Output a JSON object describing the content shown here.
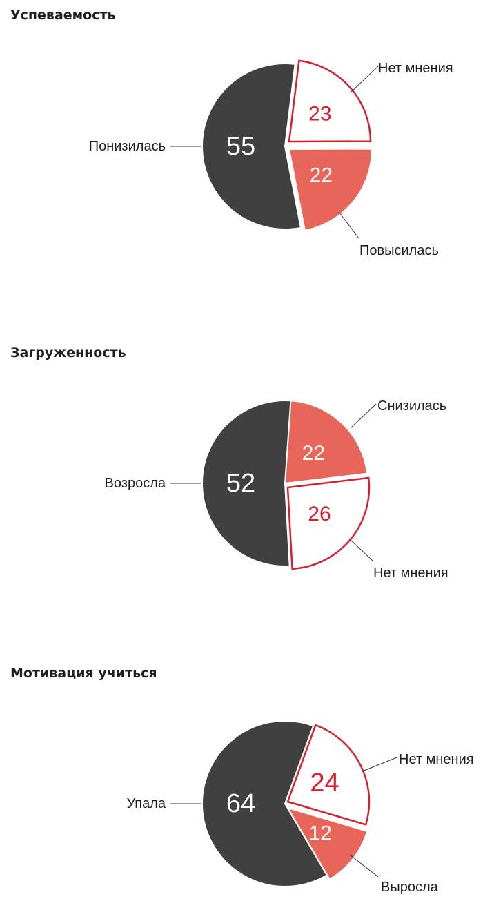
{
  "colors": {
    "dark": "#404040",
    "red": "#e8655a",
    "outline": "#d6202f",
    "white": "#ffffff",
    "leader": "#333333",
    "text": "#1f1f1f"
  },
  "chart_data": [
    {
      "type": "pie",
      "title": "Успеваемость",
      "slices": [
        {
          "label": "Нет мнения",
          "value": 23,
          "style": "outline"
        },
        {
          "label": "Повысилась",
          "value": 22,
          "style": "red"
        },
        {
          "label": "Понизилась",
          "value": 55,
          "style": "dark"
        }
      ]
    },
    {
      "type": "pie",
      "title": "Загруженность",
      "slices": [
        {
          "label": "Снизилась",
          "value": 22,
          "style": "red"
        },
        {
          "label": "Нет мнения",
          "value": 26,
          "style": "outline"
        },
        {
          "label": "Возросла",
          "value": 52,
          "style": "dark"
        }
      ]
    },
    {
      "type": "pie",
      "title": "Мотивация учиться",
      "slices": [
        {
          "label": "Нет мнения",
          "value": 24,
          "style": "outline"
        },
        {
          "label": "Выросла",
          "value": 12,
          "style": "red"
        },
        {
          "label": "Упала",
          "value": 64,
          "style": "dark"
        }
      ]
    }
  ]
}
